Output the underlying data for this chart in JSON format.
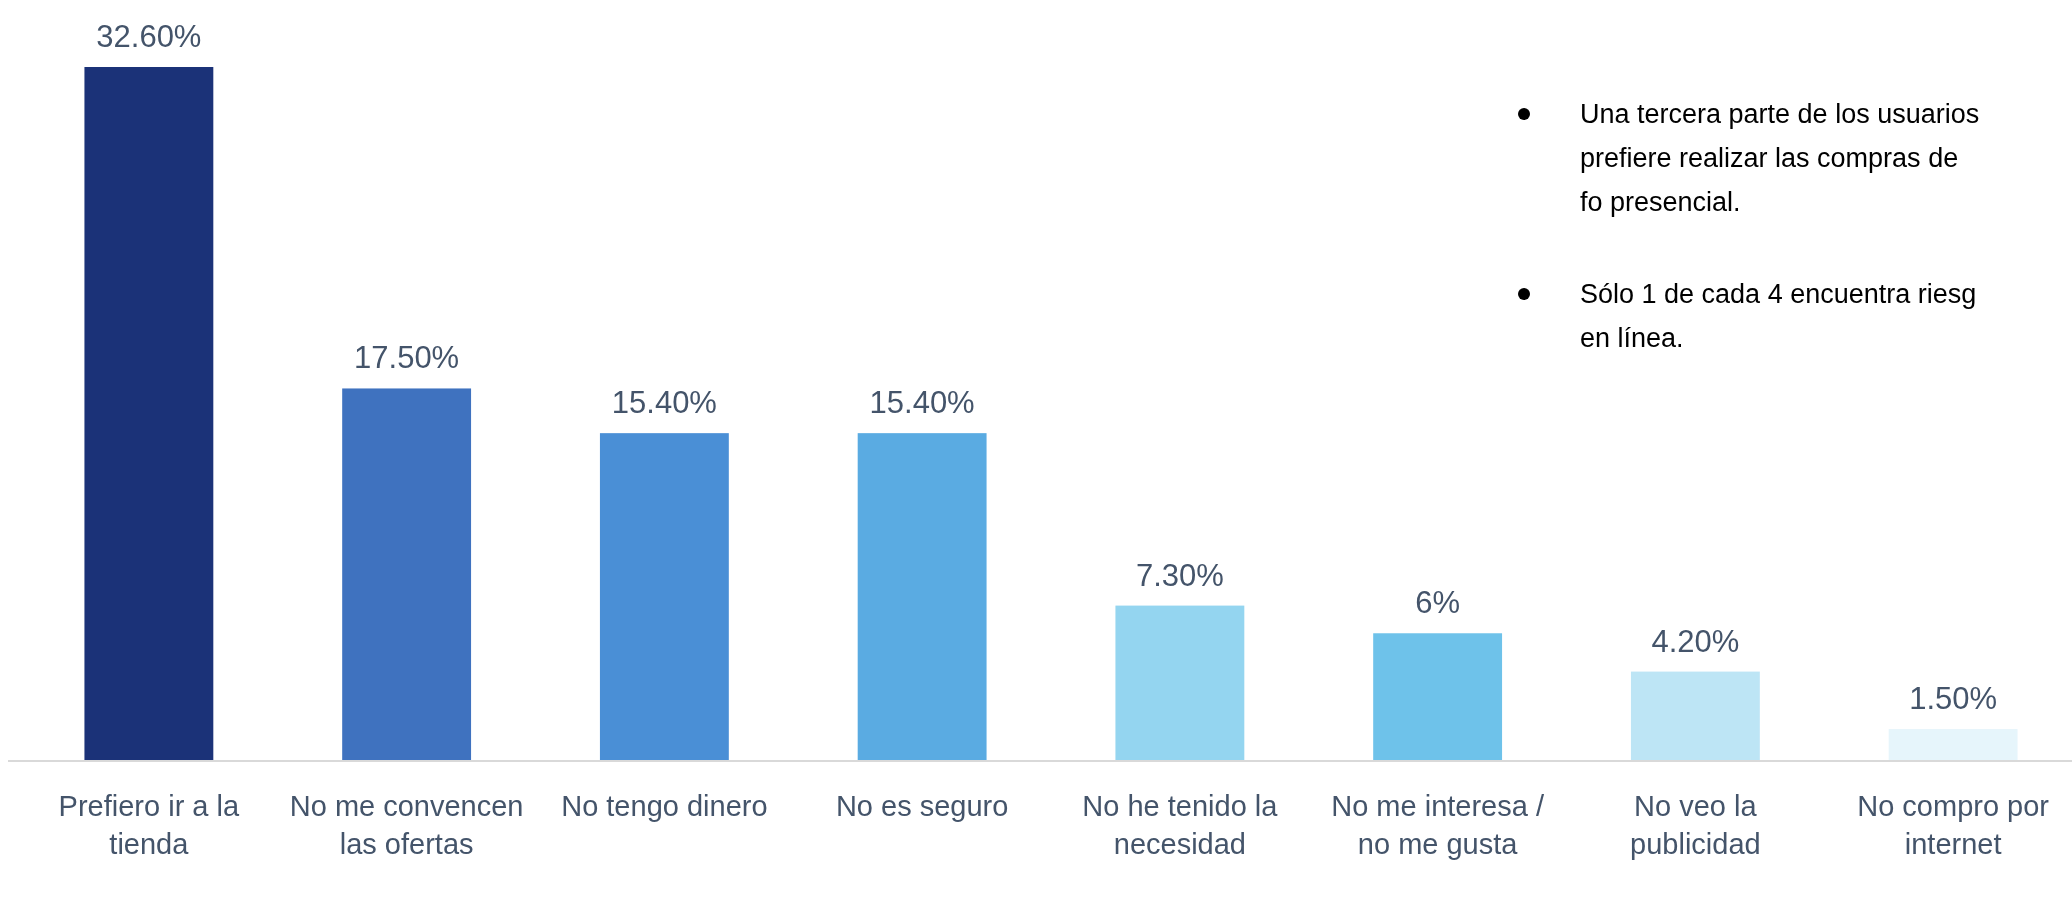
{
  "chart_data": {
    "type": "bar",
    "categories": [
      "Prefiero ir a la tienda",
      "No me convencen las ofertas",
      "No tengo dinero",
      "No es seguro",
      "No he tenido la necesidad",
      "No me interesa / no me gusta",
      "No veo la publicidad",
      "No compro por internet"
    ],
    "values": [
      32.6,
      17.5,
      15.4,
      15.4,
      7.3,
      6,
      4.2,
      1.5
    ],
    "colors": [
      "#1b3278",
      "#3f72bf",
      "#4a8fd6",
      "#5aabe2",
      "#94d5f0",
      "#6ec2ea",
      "#bde5f5",
      "#e6f5fb"
    ],
    "value_labels": [
      "32.60%",
      "17.50%",
      "15.40%",
      "15.40%",
      "7.30%",
      "6%",
      "4.20%",
      "1.50%"
    ],
    "annotations": [
      "Una tercera parte de los usuarios prefiere realizar las compras de fo presencial.",
      "Sólo 1 de cada 4  encuentra riesg en línea."
    ]
  }
}
